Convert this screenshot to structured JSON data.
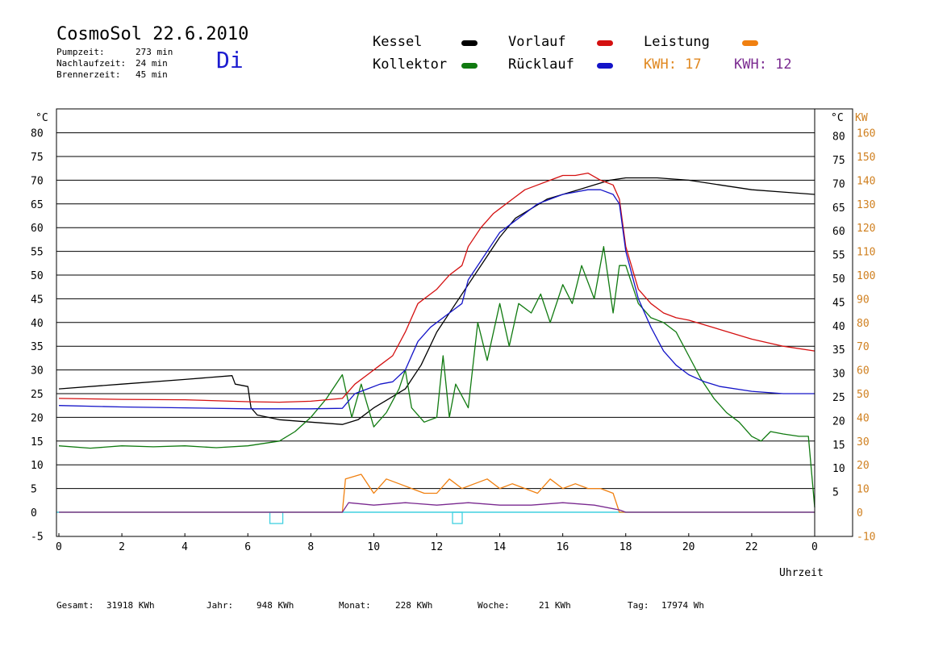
{
  "header": {
    "title": "CosmoSol 22.6.2010",
    "day": "Di",
    "stats": [
      {
        "label": "Pumpzeit:",
        "value": "273 min"
      },
      {
        "label": "Nachlaufzeit:",
        "value": "24 min"
      },
      {
        "label": "Brennerzeit:",
        "value": "45 min"
      }
    ]
  },
  "legend": {
    "kessel": "Kessel",
    "kollektor": "Kollektor",
    "vorlauf": "Vorlauf",
    "ruecklauf": "Rücklauf",
    "leistung": "Leistung",
    "kwh_orange": "KWH: 17",
    "kwh_purple": "KWH: 12"
  },
  "colors": {
    "kessel": "#000000",
    "kollektor": "#107a10",
    "vorlauf": "#d41010",
    "ruecklauf": "#1414c8",
    "leistung": "#f08010",
    "kwh_purple": "#7a2a90",
    "baseline": "#40d0e0",
    "right_axis_label": "#d08020"
  },
  "footer": {
    "gesamt_label": "Gesamt:",
    "gesamt_value": "31918 KWh",
    "jahr_label": "Jahr:",
    "jahr_value": "948 KWh",
    "monat_label": "Monat:",
    "monat_value": "228 KWh",
    "woche_label": "Woche:",
    "woche_value": "21 KWh",
    "tag_label": "Tag:",
    "tag_value": "17974 Wh"
  },
  "chart_data": {
    "type": "line",
    "xlabel": "Uhrzeit",
    "ylabel_left": "°C",
    "ylabel_right_temp": "°C",
    "ylabel_right_power": "KW",
    "xlim": [
      0,
      24
    ],
    "ylim": [
      -5,
      85
    ],
    "xticks": [
      "0",
      "2",
      "4",
      "6",
      "8",
      "10",
      "12",
      "14",
      "16",
      "18",
      "20",
      "22",
      "0"
    ],
    "yticks_left": [
      "80",
      "75",
      "70",
      "65",
      "60",
      "55",
      "50",
      "45",
      "40",
      "35",
      "30",
      "25",
      "20",
      "15",
      "10",
      "5",
      "0",
      "-5"
    ],
    "yticks_right_temp": [
      "80",
      "75",
      "70",
      "65",
      "60",
      "55",
      "50",
      "45",
      "40",
      "35",
      "30",
      "25",
      "20",
      "15",
      "10",
      "5"
    ],
    "yticks_right_power": [
      "160",
      "150",
      "140",
      "130",
      "120",
      "110",
      "100",
      "90",
      "80",
      "70",
      "60",
      "50",
      "40",
      "30",
      "20",
      "10",
      "0",
      "-10"
    ],
    "grid": true,
    "series": [
      {
        "name": "Kessel",
        "color": "#000000",
        "x": [
          0,
          2,
          4,
          5.5,
          5.6,
          6,
          6.1,
          6.3,
          7,
          8,
          9,
          9.5,
          10,
          10.5,
          11,
          11.5,
          12,
          12.5,
          13,
          13.5,
          14,
          14.5,
          15,
          15.5,
          16,
          16.5,
          17,
          17.5,
          18,
          19,
          20,
          21,
          22,
          23,
          24
        ],
        "y": [
          26,
          27,
          28,
          28.8,
          27,
          26.5,
          22,
          20.5,
          19.5,
          19,
          18.5,
          19.5,
          22,
          24,
          26,
          31,
          38,
          43,
          48,
          53,
          58,
          62,
          64,
          66,
          67,
          68,
          69,
          70,
          70.5,
          70.5,
          70,
          69,
          68,
          67.5,
          67
        ]
      },
      {
        "name": "Kollektor",
        "color": "#107a10",
        "x": [
          0,
          1,
          2,
          3,
          4,
          5,
          6,
          7,
          7.5,
          8,
          8.5,
          9,
          9.3,
          9.6,
          10,
          10.4,
          10.8,
          11,
          11.2,
          11.6,
          12,
          12.2,
          12.4,
          12.6,
          13,
          13.3,
          13.6,
          14,
          14.3,
          14.6,
          15,
          15.3,
          15.6,
          16,
          16.3,
          16.6,
          17,
          17.3,
          17.6,
          17.8,
          18,
          18.4,
          18.8,
          19.2,
          19.6,
          20,
          20.4,
          20.8,
          21.2,
          21.6,
          22,
          22.3,
          22.6,
          23,
          23.5,
          23.8,
          24
        ],
        "y": [
          14,
          13.5,
          14,
          13.8,
          14,
          13.6,
          14,
          15,
          17,
          20,
          24,
          29,
          20,
          27,
          18,
          21,
          26,
          30,
          22,
          19,
          20,
          33,
          20,
          27,
          22,
          40,
          32,
          44,
          35,
          44,
          42,
          46,
          40,
          48,
          44,
          52,
          45,
          56,
          42,
          52,
          52,
          44,
          41,
          40,
          38,
          33,
          28,
          24,
          21,
          19,
          16,
          15,
          17,
          16.5,
          16,
          16,
          1
        ]
      },
      {
        "name": "Vorlauf",
        "color": "#d41010",
        "x": [
          0,
          2,
          4,
          6,
          7,
          8,
          9,
          9.4,
          9.8,
          10.2,
          10.6,
          11,
          11.4,
          11.8,
          12,
          12.4,
          12.8,
          13,
          13.4,
          13.8,
          14,
          14.4,
          14.8,
          15.2,
          15.6,
          16,
          16.4,
          16.8,
          17.2,
          17.6,
          17.8,
          18,
          18.4,
          18.8,
          19.2,
          19.6,
          20,
          21,
          22,
          23,
          24
        ],
        "y": [
          24,
          23.8,
          23.7,
          23.3,
          23.2,
          23.4,
          24,
          27,
          29,
          31,
          33,
          38,
          44,
          46,
          47,
          50,
          52,
          56,
          60,
          63,
          64,
          66,
          68,
          69,
          70,
          71,
          71,
          71.5,
          70,
          69,
          66,
          56,
          47,
          44,
          42,
          41,
          40.5,
          38.5,
          36.5,
          35,
          34
        ]
      },
      {
        "name": "Rücklauf",
        "color": "#1414c8",
        "x": [
          0,
          2,
          4,
          6,
          7,
          8,
          9,
          9.4,
          9.8,
          10.2,
          10.6,
          11,
          11.4,
          11.8,
          12,
          12.4,
          12.8,
          13,
          13.4,
          13.8,
          14,
          14.4,
          14.8,
          15.2,
          15.6,
          16,
          16.4,
          16.8,
          17.2,
          17.6,
          17.8,
          18,
          18.4,
          18.8,
          19.2,
          19.6,
          20,
          20.5,
          21,
          22,
          23,
          24
        ],
        "y": [
          22.5,
          22.2,
          22,
          21.8,
          21.8,
          21.8,
          21.9,
          25,
          26,
          27,
          27.5,
          30,
          36,
          39,
          40,
          42,
          44,
          49,
          53,
          57,
          59,
          61,
          63,
          65,
          66,
          67,
          67.5,
          68,
          68,
          67,
          65,
          55,
          45,
          39,
          34,
          31,
          29,
          27.5,
          26.5,
          25.5,
          25,
          25
        ]
      },
      {
        "name": "Leistung",
        "color": "#f08010",
        "x": [
          0,
          9,
          9.1,
          9.6,
          10,
          10.4,
          10.8,
          11.2,
          11.6,
          12,
          12.4,
          12.8,
          13.2,
          13.6,
          14,
          14.4,
          14.8,
          15.2,
          15.6,
          16,
          16.4,
          16.8,
          17.2,
          17.6,
          17.8,
          18,
          24
        ],
        "y": [
          0,
          0,
          7,
          8,
          4,
          7,
          6,
          5,
          4,
          4,
          7,
          5,
          6,
          7,
          5,
          6,
          5,
          4,
          7,
          5,
          6,
          5,
          5,
          4,
          0,
          0,
          0
        ]
      },
      {
        "name": "KWH",
        "color": "#7a2a90",
        "x": [
          0,
          9,
          9.2,
          10,
          11,
          12,
          13,
          14,
          15,
          16,
          17,
          17.8,
          18,
          24
        ],
        "y": [
          0,
          0,
          2,
          1.5,
          2,
          1.5,
          2,
          1.5,
          1.5,
          2,
          1.5,
          0.5,
          0,
          0
        ]
      }
    ]
  }
}
